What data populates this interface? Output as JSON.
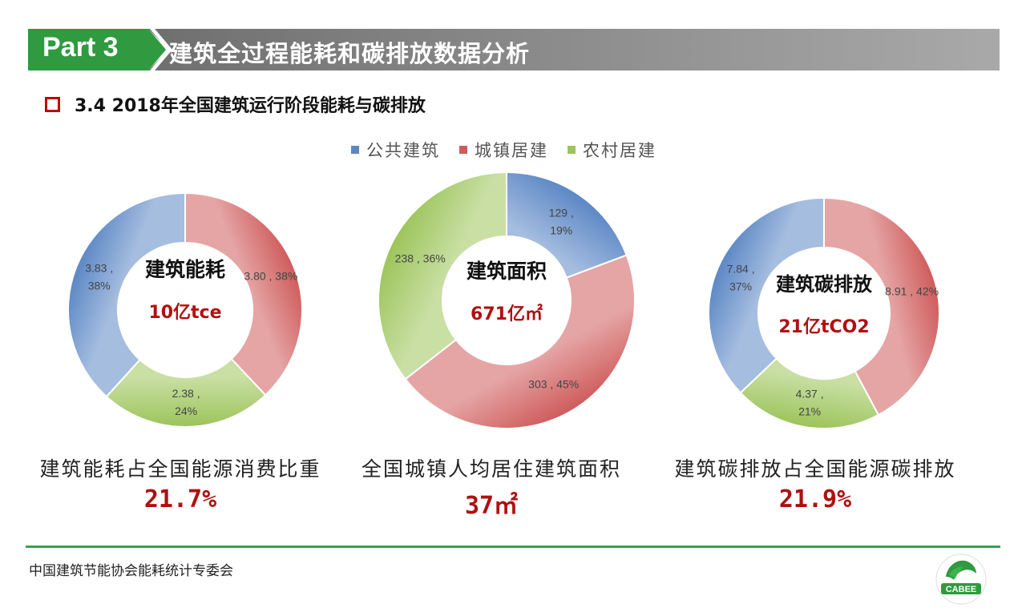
{
  "header": {
    "part_label": "Part 3",
    "title": "建筑全过程能耗和碳排放数据分析",
    "green": "#2f9a3f",
    "gray": "#8e8e8e"
  },
  "subtitle": "3.4 2018年全国建筑运行阶段能耗与碳排放",
  "legend": [
    {
      "label": "公共建筑",
      "color": "#5b87c5"
    },
    {
      "label": "城镇居建",
      "color": "#cf5b5b"
    },
    {
      "label": "农村居建",
      "color": "#9cc45a"
    }
  ],
  "chart_data": [
    {
      "type": "donut",
      "center_title": "建筑能耗",
      "center_value": "10亿tce",
      "series": [
        {
          "name": "城镇居建",
          "value": 3.8,
          "percent": 38,
          "label_lines": [
            "3.80 , 38%"
          ]
        },
        {
          "name": "农村居建",
          "value": 2.38,
          "percent": 24,
          "label_lines": [
            "2.38 ,",
            "24%"
          ]
        },
        {
          "name": "公共建筑",
          "value": 3.83,
          "percent": 38,
          "label_lines": [
            "3.83 ,",
            "38%"
          ]
        }
      ],
      "caption": "建筑能耗占全国能源消费比重",
      "stat": "21.7%"
    },
    {
      "type": "donut",
      "center_title": "建筑面积",
      "center_value": "671亿㎡",
      "series": [
        {
          "name": "公共建筑",
          "value": 129,
          "percent": 19,
          "label_lines": [
            "129 ,",
            "19%"
          ]
        },
        {
          "name": "城镇居建",
          "value": 303,
          "percent": 45,
          "label_lines": [
            "303 , 45%"
          ]
        },
        {
          "name": "农村居建",
          "value": 238,
          "percent": 36,
          "label_lines": [
            "238 , 36%"
          ]
        }
      ],
      "caption": "全国城镇人均居住建筑面积",
      "stat": "37㎡"
    },
    {
      "type": "donut",
      "center_title": "建筑碳排放",
      "center_value": "21亿tCO2",
      "series": [
        {
          "name": "城镇居建",
          "value": 8.91,
          "percent": 42,
          "label_lines": [
            "8.91 , 42%"
          ]
        },
        {
          "name": "农村居建",
          "value": 4.37,
          "percent": 21,
          "label_lines": [
            "4.37 ,",
            "21%"
          ]
        },
        {
          "name": "公共建筑",
          "value": 7.84,
          "percent": 37,
          "label_lines": [
            "7.84 ,",
            "37%"
          ]
        }
      ],
      "caption": "建筑碳排放占全国能源碳排放",
      "stat": "21.9%"
    }
  ],
  "footer": {
    "text": "中国建筑节能协会能耗统计专委会",
    "logo_text": "CABEE"
  }
}
